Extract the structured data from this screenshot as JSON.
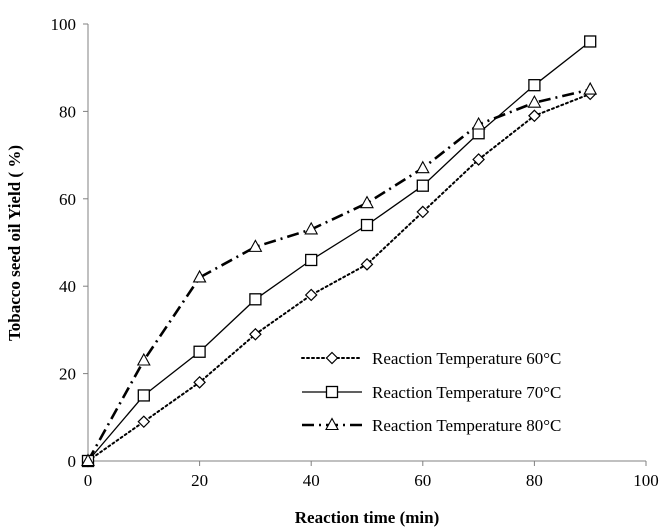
{
  "chart_data": {
    "type": "line",
    "title": "",
    "xlabel": "Reaction time (min)",
    "ylabel": "Tobacco seed oil Yield ( %)",
    "xlim": [
      0,
      100
    ],
    "ylim": [
      0,
      100
    ],
    "x_ticks": [
      "0",
      "20",
      "40",
      "60",
      "80",
      "100"
    ],
    "y_ticks": [
      "0",
      "20",
      "40",
      "60",
      "80",
      "100"
    ],
    "grid": false,
    "legend_position": "bottom-right",
    "series": [
      {
        "name": "Reaction Temperature 60°C",
        "marker": "diamond",
        "line_style": "dotted",
        "color": "#000000",
        "x": [
          0,
          10,
          20,
          30,
          40,
          50,
          60,
          70,
          80,
          90
        ],
        "y": [
          0,
          9,
          18,
          29,
          38,
          45,
          57,
          69,
          79,
          84
        ]
      },
      {
        "name": "Reaction Temperature 70°C",
        "marker": "square",
        "line_style": "solid",
        "color": "#000000",
        "x": [
          0,
          10,
          20,
          30,
          40,
          50,
          60,
          70,
          80,
          90
        ],
        "y": [
          0,
          15,
          25,
          37,
          46,
          54,
          63,
          75,
          86,
          96
        ]
      },
      {
        "name": "Reaction Temperature 80°C",
        "marker": "triangle",
        "line_style": "dash-dot",
        "color": "#000000",
        "x": [
          0,
          10,
          20,
          30,
          40,
          50,
          60,
          70,
          80,
          90
        ],
        "y": [
          0,
          23,
          42,
          49,
          53,
          59,
          67,
          77,
          82,
          85
        ]
      }
    ]
  }
}
